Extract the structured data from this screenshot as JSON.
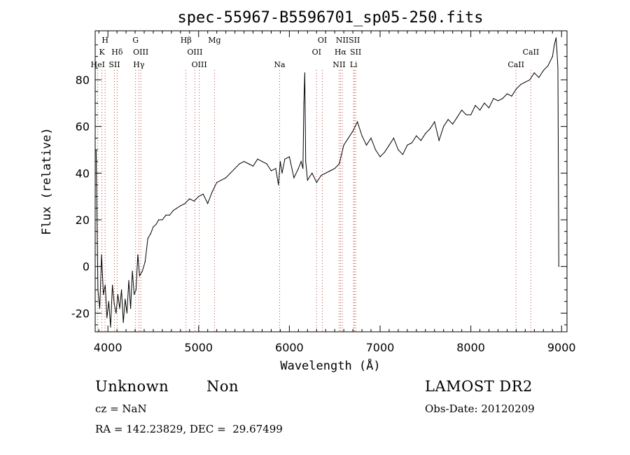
{
  "chart_data": {
    "type": "line",
    "title": "spec-55967-B5596701_sp05-250.fits",
    "xlabel": "Wavelength (Å)",
    "ylabel": "Flux (relative)",
    "xlim": [
      3860,
      9060
    ],
    "ylim": [
      -28,
      101
    ],
    "xticks": [
      4000,
      5000,
      6000,
      7000,
      8000,
      9000
    ],
    "yticks": [
      -20,
      0,
      20,
      40,
      60,
      80
    ],
    "grid": false,
    "line_color": "#000000",
    "marker_color": "#c04040",
    "series": [
      {
        "x": [
          3870,
          3890,
          3910,
          3930,
          3950,
          3970,
          3990,
          4010,
          4030,
          4050,
          4070,
          4090,
          4110,
          4130,
          4150,
          4170,
          4190,
          4210,
          4230,
          4250,
          4270,
          4290,
          4310,
          4330,
          4350,
          4380,
          4410,
          4440,
          4470,
          4500,
          4530,
          4560,
          4600,
          4640,
          4680,
          4720,
          4760,
          4800,
          4850,
          4900,
          4950,
          5000,
          5050,
          5100,
          5150,
          5200,
          5250,
          5300,
          5350,
          5400,
          5450,
          5500,
          5550,
          5600,
          5650,
          5700,
          5750,
          5800,
          5850,
          5880,
          5890,
          5900,
          5920,
          5950,
          6000,
          6050,
          6100,
          6130,
          6150,
          6160,
          6170,
          6180,
          6200,
          6250,
          6300,
          6350,
          6400,
          6450,
          6500,
          6550,
          6600,
          6650,
          6700,
          6750,
          6800,
          6850,
          6900,
          6950,
          7000,
          7050,
          7100,
          7150,
          7200,
          7250,
          7300,
          7350,
          7400,
          7450,
          7500,
          7550,
          7600,
          7650,
          7700,
          7750,
          7800,
          7850,
          7900,
          7950,
          8000,
          8050,
          8100,
          8150,
          8200,
          8250,
          8300,
          8350,
          8400,
          8450,
          8500,
          8550,
          8600,
          8650,
          8700,
          8750,
          8800,
          8850,
          8900,
          8920,
          8940,
          8950,
          8960,
          8970
        ],
        "y": [
          50,
          -10,
          -18,
          5,
          -12,
          -8,
          -22,
          -15,
          -26,
          -8,
          -16,
          -20,
          -12,
          -18,
          -10,
          -24,
          -14,
          -20,
          -6,
          -18,
          -2,
          -12,
          -10,
          5,
          -4,
          -2,
          2,
          12,
          14,
          17,
          18,
          20,
          20,
          22,
          22,
          24,
          25,
          26,
          27,
          29,
          28,
          30,
          31,
          27,
          32,
          36,
          37,
          38,
          40,
          42,
          44,
          45,
          44,
          43,
          46,
          45,
          44,
          41,
          42,
          35,
          40,
          45,
          40,
          46,
          47,
          38,
          42,
          45,
          42,
          70,
          83,
          45,
          37,
          40,
          36,
          39,
          40,
          41,
          42,
          44,
          52,
          55,
          58,
          62,
          56,
          52,
          55,
          50,
          47,
          49,
          52,
          55,
          50,
          48,
          52,
          53,
          56,
          54,
          57,
          59,
          62,
          54,
          60,
          63,
          61,
          64,
          67,
          65,
          65,
          69,
          67,
          70,
          68,
          72,
          71,
          72,
          74,
          73,
          76,
          78,
          79,
          80,
          83,
          81,
          84,
          86,
          90,
          95,
          98,
          92,
          85,
          0
        ]
      }
    ],
    "line_markers": [
      {
        "label": "H",
        "wavelength": 3969,
        "row": 1
      },
      {
        "label": "K",
        "wavelength": 3934,
        "row": 2
      },
      {
        "label": "HeI",
        "wavelength": 3889,
        "row": 3
      },
      {
        "label": "Hδ",
        "wavelength": 4102,
        "row": 2
      },
      {
        "label": "SII",
        "wavelength": 4072,
        "row": 3
      },
      {
        "label": "G",
        "wavelength": 4305,
        "row": 1
      },
      {
        "label": "OIII",
        "wavelength": 4363,
        "row": 2
      },
      {
        "label": "Hγ",
        "wavelength": 4341,
        "row": 3
      },
      {
        "label": "Hβ",
        "wavelength": 4861,
        "row": 1
      },
      {
        "label": "OIII",
        "wavelength": 4959,
        "row": 2
      },
      {
        "label": "OIII",
        "wavelength": 5007,
        "row": 3
      },
      {
        "label": "Mg",
        "wavelength": 5175,
        "row": 1
      },
      {
        "label": "Na",
        "wavelength": 5893,
        "row": 3
      },
      {
        "label": "OI",
        "wavelength": 6364,
        "row": 1
      },
      {
        "label": "OI",
        "wavelength": 6300,
        "row": 2
      },
      {
        "label": "NII",
        "wavelength": 6583,
        "row": 1
      },
      {
        "label": "SII",
        "wavelength": 6716,
        "row": 1
      },
      {
        "label": "Hα",
        "wavelength": 6563,
        "row": 2
      },
      {
        "label": "SII",
        "wavelength": 6731,
        "row": 2
      },
      {
        "label": "NII",
        "wavelength": 6548,
        "row": 3
      },
      {
        "label": "Li",
        "wavelength": 6708,
        "row": 3
      },
      {
        "label": "CaII",
        "wavelength": 8662,
        "row": 2
      },
      {
        "label": "CaII",
        "wavelength": 8498,
        "row": 3
      }
    ]
  },
  "info": {
    "object_class": "Unknown",
    "subclass": "Non",
    "survey": "LAMOST DR2",
    "cz_text": "cz = NaN",
    "obs_date_text": "Obs-Date: 20120209",
    "coords_text": "RA = 142.23829, DEC =  29.67499"
  }
}
